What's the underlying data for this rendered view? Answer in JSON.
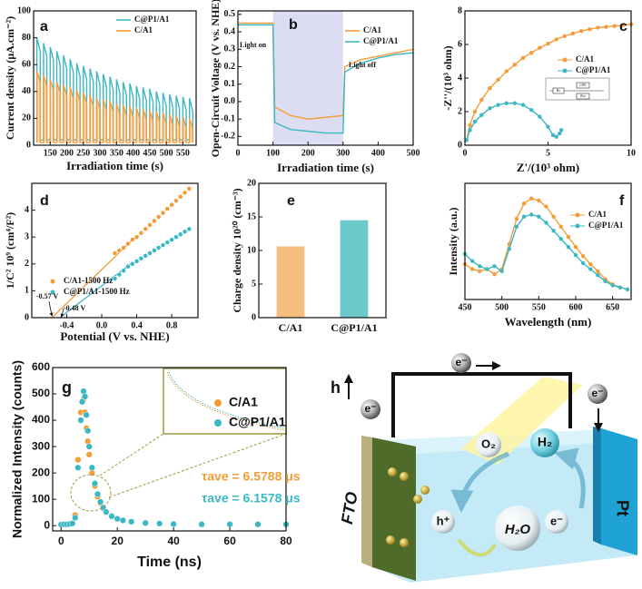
{
  "chart_data": [
    {
      "panel": "a",
      "type": "line",
      "xlabel": "Irradiation time (s)",
      "ylabel": "Current density (μA.cm⁻²)",
      "x": [
        110,
        110,
        120,
        120,
        130,
        130,
        140,
        140,
        150,
        150,
        160,
        160,
        170,
        170,
        180,
        180,
        190,
        190,
        200,
        200,
        210,
        210,
        220,
        220,
        230,
        230,
        240,
        240,
        250,
        250,
        260,
        260,
        270,
        270,
        280,
        280,
        290,
        290,
        300,
        300,
        310,
        310,
        320,
        320,
        330,
        330,
        340,
        340,
        350,
        350,
        360,
        360,
        370,
        370,
        380,
        380,
        390,
        390,
        400,
        400,
        410,
        410,
        420,
        420,
        430,
        430,
        440,
        440,
        450,
        450,
        460,
        460,
        470,
        470,
        480,
        480,
        490,
        490,
        500,
        500,
        510,
        510,
        520,
        520,
        530,
        530,
        540,
        540,
        550,
        550,
        560,
        560,
        570,
        570,
        580,
        580
      ],
      "series": [
        {
          "name": "C@P1/A1",
          "color": "#3bb8c4",
          "values": [
            4,
            80,
            70,
            4,
            4,
            76,
            66,
            4,
            4,
            73,
            63,
            4,
            4,
            70,
            60,
            4,
            4,
            67,
            57,
            4,
            4,
            64,
            54,
            4,
            4,
            61,
            51,
            4,
            4,
            59,
            49,
            4,
            4,
            57,
            47,
            4,
            4,
            55,
            45,
            4,
            4,
            53,
            43,
            4,
            4,
            51,
            41,
            4,
            4,
            49,
            39,
            4,
            4,
            47,
            37,
            4,
            4,
            46,
            36,
            4,
            4,
            44,
            34,
            4,
            4,
            43,
            33,
            4,
            4,
            42,
            32,
            4,
            4,
            40,
            30,
            4,
            4,
            39,
            29,
            4,
            4,
            38,
            28,
            4,
            4,
            37,
            27,
            4,
            4,
            36,
            26,
            4,
            4,
            35,
            25,
            4
          ]
        },
        {
          "name": "C/A1",
          "color": "#f39c38",
          "area": true,
          "values": [
            2,
            55,
            47,
            2,
            2,
            52,
            44,
            2,
            2,
            49,
            41,
            2,
            2,
            47,
            39,
            2,
            2,
            45,
            37,
            2,
            2,
            43,
            35,
            2,
            2,
            41,
            33,
            2,
            2,
            39,
            31,
            2,
            2,
            37,
            29,
            2,
            2,
            35,
            27,
            2,
            2,
            34,
            26,
            2,
            2,
            33,
            25,
            2,
            2,
            31,
            23,
            2,
            2,
            30,
            22,
            2,
            2,
            29,
            21,
            2,
            2,
            28,
            20,
            2,
            2,
            27,
            19,
            2,
            2,
            26,
            18,
            2,
            2,
            25,
            17,
            2,
            2,
            24,
            16,
            2,
            2,
            23,
            15,
            2,
            2,
            22,
            14,
            2,
            2,
            21,
            13,
            2,
            2,
            20,
            12,
            2
          ]
        }
      ],
      "xlim": [
        100,
        590
      ],
      "ylim": [
        0,
        100
      ],
      "xticks": [
        150,
        200,
        250,
        300,
        350,
        400,
        450,
        500,
        550
      ],
      "yticks": [
        0,
        20,
        40,
        60,
        80,
        100
      ]
    },
    {
      "panel": "b",
      "type": "line",
      "xlabel": "Irradiation time (s)",
      "ylabel": "Open-Circuit Voltage (V vs. NHE)",
      "x": [
        0,
        100,
        105,
        150,
        200,
        250,
        300,
        305,
        350,
        400,
        450,
        500
      ],
      "shade": [
        100,
        300
      ],
      "shade_color": "#dcdcf2",
      "annotations": [
        {
          "text": "Light on"
        },
        {
          "text": "Light off"
        }
      ],
      "series": [
        {
          "name": "C/A1",
          "color": "#f39c38",
          "values": [
            0.45,
            0.45,
            -0.03,
            -0.08,
            -0.1,
            -0.09,
            -0.08,
            0.2,
            0.24,
            0.26,
            0.28,
            0.3
          ]
        },
        {
          "name": "C@P1/A1",
          "color": "#3bb8c4",
          "values": [
            0.44,
            0.44,
            -0.12,
            -0.16,
            -0.17,
            -0.18,
            -0.18,
            0.17,
            0.22,
            0.25,
            0.27,
            0.28
          ]
        }
      ],
      "xlim": [
        0,
        500
      ],
      "ylim": [
        -0.25,
        0.52
      ],
      "xticks": [
        0,
        100,
        200,
        300,
        400,
        500
      ],
      "yticks": [
        -0.2,
        -0.1,
        {
          "value": 0,
          "label": "0.0"
        },
        0.1,
        0.2,
        0.3,
        0.4,
        0.5
      ]
    },
    {
      "panel": "c",
      "type": "line",
      "xlabel": "Z'/(10³ ohm)",
      "ylabel": "-Z''/(10³ ohm)",
      "inset_labels": [
        "Rs",
        "CPE",
        "Rct"
      ],
      "series": [
        {
          "name": "C/A1",
          "color": "#f39c38",
          "marker": true,
          "x": [
            0.1,
            0.3,
            0.6,
            1,
            1.5,
            2,
            2.5,
            3,
            3.5,
            4,
            4.5,
            5,
            5.5,
            6,
            6.5,
            7,
            7.5,
            8,
            8.5,
            9,
            9.5,
            10
          ],
          "values": [
            0.3,
            1.2,
            2,
            2.7,
            3.4,
            3.9,
            4.4,
            4.8,
            5.2,
            5.5,
            5.8,
            6.05,
            6.3,
            6.5,
            6.65,
            6.8,
            6.9,
            7,
            7.05,
            7.1,
            7.15,
            7.2
          ]
        },
        {
          "name": "C@P1/A1",
          "color": "#3bb8c4",
          "marker": true,
          "x": [
            0.1,
            0.3,
            0.6,
            1,
            1.5,
            2,
            2.5,
            3,
            3.5,
            4,
            4.5,
            5,
            5.3,
            5.5,
            5.7,
            5.8
          ],
          "values": [
            0.3,
            0.9,
            1.4,
            1.8,
            2.2,
            2.4,
            2.5,
            2.5,
            2.4,
            2.1,
            1.7,
            1.1,
            0.6,
            0.5,
            0.7,
            0.9
          ]
        }
      ],
      "xlim": [
        0,
        10
      ],
      "ylim": [
        0,
        8
      ],
      "xticks": [
        0,
        5,
        10
      ],
      "yticks": [
        0,
        2,
        4,
        6,
        8
      ]
    },
    {
      "panel": "d",
      "type": "scatter",
      "xlabel": "Potential (V vs. NHE)",
      "ylabel": "1/C² 10⁹ (cm⁴/F²)",
      "x": [
        0.15,
        0.2,
        0.25,
        0.3,
        0.35,
        0.4,
        0.45,
        0.5,
        0.55,
        0.6,
        0.65,
        0.7,
        0.75,
        0.8,
        0.85,
        0.9,
        0.95,
        1.0
      ],
      "annotations": [
        {
          "text": "-0.57 V"
        },
        {
          "text": "-0.48 V"
        }
      ],
      "series": [
        {
          "name": "C/A1-1500 Hz",
          "color": "#f39c38",
          "values": [
            2.4,
            2.5,
            2.6,
            2.75,
            2.9,
            3.0,
            3.15,
            3.3,
            3.45,
            3.6,
            3.75,
            3.9,
            4.05,
            4.2,
            4.35,
            4.5,
            4.65,
            4.8
          ]
        },
        {
          "name": "C@P1/A1-1500 Hz",
          "color": "#3bb8c4",
          "values": [
            1.45,
            1.6,
            1.75,
            1.9,
            2.0,
            2.1,
            2.2,
            2.3,
            2.4,
            2.5,
            2.6,
            2.7,
            2.8,
            2.9,
            3.0,
            3.1,
            3.2,
            3.3
          ]
        }
      ],
      "fit_lines": [
        {
          "color": "#f39c38",
          "x": [
            -0.57,
            0.4
          ],
          "values": [
            0,
            3.05
          ]
        },
        {
          "color": "#3bb8c4",
          "x": [
            -0.48,
            0.35
          ],
          "values": [
            0,
            2.05
          ]
        }
      ],
      "xlim": [
        -0.8,
        1.1
      ],
      "ylim": [
        0,
        5
      ],
      "xticks": [
        -0.4,
        {
          "value": 0,
          "label": "0.0"
        },
        0.4,
        0.8
      ],
      "yticks": [
        0,
        1,
        2,
        3,
        4
      ]
    },
    {
      "panel": "e",
      "type": "bar",
      "ylabel": "Charge density 10²⁰ (cm⁻³)",
      "categories": [
        "C/A1",
        "C@P1/A1"
      ],
      "values": [
        10.6,
        14.5
      ],
      "colors": [
        "#f6b66e",
        "#5cc4c8"
      ],
      "ylim": [
        0,
        20
      ],
      "yticks": [
        0,
        5,
        10,
        15,
        20
      ]
    },
    {
      "panel": "f",
      "type": "line",
      "xlabel": "Wavelength (nm)",
      "ylabel": "Intensity (a.u.)",
      "x": [
        450,
        460,
        470,
        480,
        490,
        500,
        510,
        520,
        530,
        540,
        550,
        560,
        570,
        580,
        590,
        600,
        610,
        620,
        630,
        640,
        650,
        660,
        670
      ],
      "series": [
        {
          "name": "C/A1",
          "color": "#f39c38",
          "marker": true,
          "values": [
            0.35,
            0.3,
            0.28,
            0.3,
            0.25,
            0.3,
            0.55,
            0.8,
            0.95,
            1.0,
            0.98,
            0.92,
            0.82,
            0.72,
            0.62,
            0.52,
            0.43,
            0.35,
            0.28,
            0.2,
            0.15,
            0.12,
            0.1
          ]
        },
        {
          "name": "C@P1/A1",
          "color": "#3bb8c4",
          "marker": true,
          "values": [
            0.45,
            0.38,
            0.33,
            0.3,
            0.33,
            0.28,
            0.5,
            0.72,
            0.82,
            0.84,
            0.82,
            0.76,
            0.68,
            0.6,
            0.52,
            0.44,
            0.36,
            0.3,
            0.24,
            0.18,
            0.14,
            0.12,
            0.1
          ]
        }
      ],
      "xlim": [
        450,
        675
      ],
      "ylim": [
        0,
        1.15
      ],
      "xticks": [
        450,
        500,
        550,
        600,
        650
      ]
    },
    {
      "panel": "g",
      "type": "scatter",
      "xlabel": "Time (ns)",
      "ylabel": "Normalized Intensity (counts)",
      "x": [
        0,
        1,
        2,
        3,
        4,
        5,
        6,
        7,
        7.5,
        8,
        8.5,
        9,
        9.5,
        10,
        11,
        12,
        13,
        14,
        15,
        16,
        18,
        20,
        22,
        25,
        30,
        35,
        40,
        50,
        60,
        70,
        80
      ],
      "annotations": [
        {
          "text": "τave = 6.5788 μs",
          "color": "#f39c38"
        },
        {
          "text": "τave = 6.1578 μs",
          "color": "#3bb8c4"
        }
      ],
      "series": [
        {
          "name": "C/A1",
          "color": "#f39c38",
          "values": [
            5,
            5,
            6,
            8,
            10,
            40,
            250,
            430,
            470,
            480,
            430,
            370,
            320,
            270,
            200,
            150,
            110,
            85,
            65,
            50,
            35,
            25,
            20,
            15,
            10,
            8,
            6,
            5,
            5,
            5,
            5
          ]
        },
        {
          "name": "C@P1/A1",
          "color": "#3bb8c4",
          "values": [
            4,
            5,
            5,
            6,
            8,
            30,
            220,
            400,
            470,
            510,
            490,
            420,
            360,
            300,
            220,
            160,
            120,
            90,
            68,
            52,
            36,
            26,
            20,
            15,
            10,
            8,
            6,
            5,
            5,
            5,
            5
          ]
        }
      ],
      "xlim": [
        -3,
        80
      ],
      "ylim": [
        -20,
        600
      ],
      "xticks": [
        0,
        20,
        40,
        60,
        80
      ],
      "yticks": [
        0,
        100,
        200,
        300,
        400,
        500,
        600
      ]
    }
  ],
  "diagram": {
    "panel": "h",
    "top_electron": "e⁻",
    "left_electron": "e⁻",
    "right_electron": "e⁻",
    "oxygen": "O₂",
    "hydrogen": "H₂",
    "hole": "h⁺",
    "electron": "e⁻",
    "water": "H₂O",
    "anode": "FTO",
    "cathode": "Pt"
  }
}
